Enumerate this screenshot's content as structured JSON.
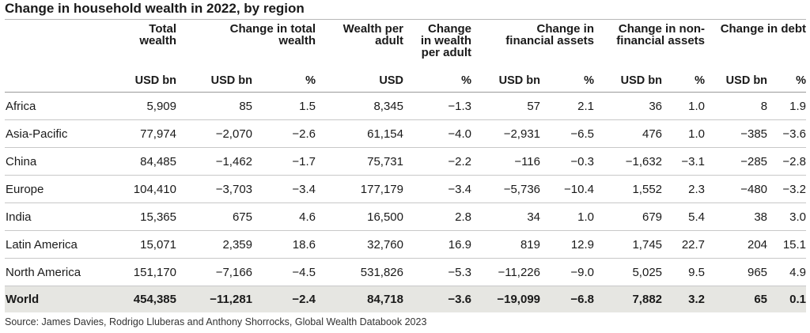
{
  "title": "Change in household wealth in 2022, by region",
  "headers": {
    "total_wealth": "Total\nwealth",
    "change_total_wealth": "Change in total\nwealth",
    "wealth_per_adult": "Wealth per\nadult",
    "change_wealth_per_adult": "Change\nin wealth\nper adult",
    "change_financial_assets": "Change in\nfinancial assets",
    "change_nonfinancial_assets": "Change in non-\nfinancial assets",
    "change_debt": "Change in debt"
  },
  "units": [
    "USD bn",
    "USD bn",
    "%",
    "USD",
    "%",
    "USD bn",
    "%",
    "USD bn",
    "%",
    "USD bn",
    "%"
  ],
  "rows": [
    {
      "region": "Africa",
      "values": [
        "5,909",
        "85",
        "1.5",
        "8,345",
        "−1.3",
        "57",
        "2.1",
        "36",
        "1.0",
        "8",
        "1.9"
      ]
    },
    {
      "region": "Asia-Pacific",
      "values": [
        "77,974",
        "−2,070",
        "−2.6",
        "61,154",
        "−4.0",
        "−2,931",
        "−6.5",
        "476",
        "1.0",
        "−385",
        "−3.6"
      ]
    },
    {
      "region": "China",
      "values": [
        "84,485",
        "−1,462",
        "−1.7",
        "75,731",
        "−2.2",
        "−116",
        "−0.3",
        "−1,632",
        "−3.1",
        "−285",
        "−2.8"
      ]
    },
    {
      "region": "Europe",
      "values": [
        "104,410",
        "−3,703",
        "−3.4",
        "177,179",
        "−3.4",
        "−5,736",
        "−10.4",
        "1,552",
        "2.3",
        "−480",
        "−3.2"
      ]
    },
    {
      "region": "India",
      "values": [
        "15,365",
        "675",
        "4.6",
        "16,500",
        "2.8",
        "34",
        "1.0",
        "679",
        "5.4",
        "38",
        "3.0"
      ]
    },
    {
      "region": "Latin America",
      "values": [
        "15,071",
        "2,359",
        "18.6",
        "32,760",
        "16.9",
        "819",
        "12.9",
        "1,745",
        "22.7",
        "204",
        "15.1"
      ]
    },
    {
      "region": "North America",
      "values": [
        "151,170",
        "−7,166",
        "−4.5",
        "531,826",
        "−5.3",
        "−11,226",
        "−9.0",
        "5,025",
        "9.5",
        "965",
        "4.9"
      ]
    }
  ],
  "total": {
    "region": "World",
    "values": [
      "454,385",
      "−11,281",
      "−2.4",
      "84,718",
      "−3.6",
      "−19,099",
      "−6.8",
      "7,882",
      "3.2",
      "65",
      "0.1"
    ]
  },
  "source": "Source: James Davies, Rodrigo Lluberas and Anthony Shorrocks, Global Wealth Databook 2023"
}
